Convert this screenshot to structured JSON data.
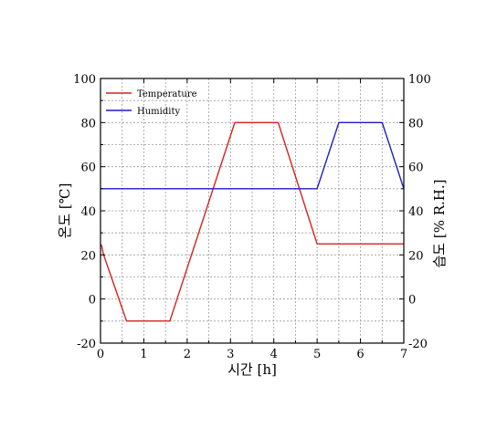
{
  "chart_data": {
    "type": "line",
    "title": "",
    "xlabel": "시간 [h]",
    "ylabel_left": "온도 [℃]",
    "ylabel_right": "습도 [% R.H.]",
    "xlim": [
      0,
      7
    ],
    "ylim": [
      -20,
      100
    ],
    "x_ticks": [
      "0",
      "1",
      "2",
      "3",
      "4",
      "5",
      "6",
      "7"
    ],
    "y_ticks": [
      "-20",
      "0",
      "20",
      "40",
      "60",
      "80",
      "100"
    ],
    "grid": true,
    "legend_position": "top-left",
    "series": [
      {
        "name": "Temperature",
        "color": "#d62020",
        "x": [
          0,
          0.03,
          0.06,
          0.09,
          0.6,
          1.6,
          3.1,
          4.1,
          5.0,
          7.0
        ],
        "y": [
          25,
          24,
          21,
          19,
          -10,
          -10,
          80,
          80,
          25,
          25
        ]
      },
      {
        "name": "Humidity",
        "color": "#1c1cc8",
        "x": [
          0,
          5.0,
          5.5,
          6.5,
          7.0
        ],
        "y": [
          50,
          50,
          80,
          80,
          50
        ]
      }
    ]
  }
}
